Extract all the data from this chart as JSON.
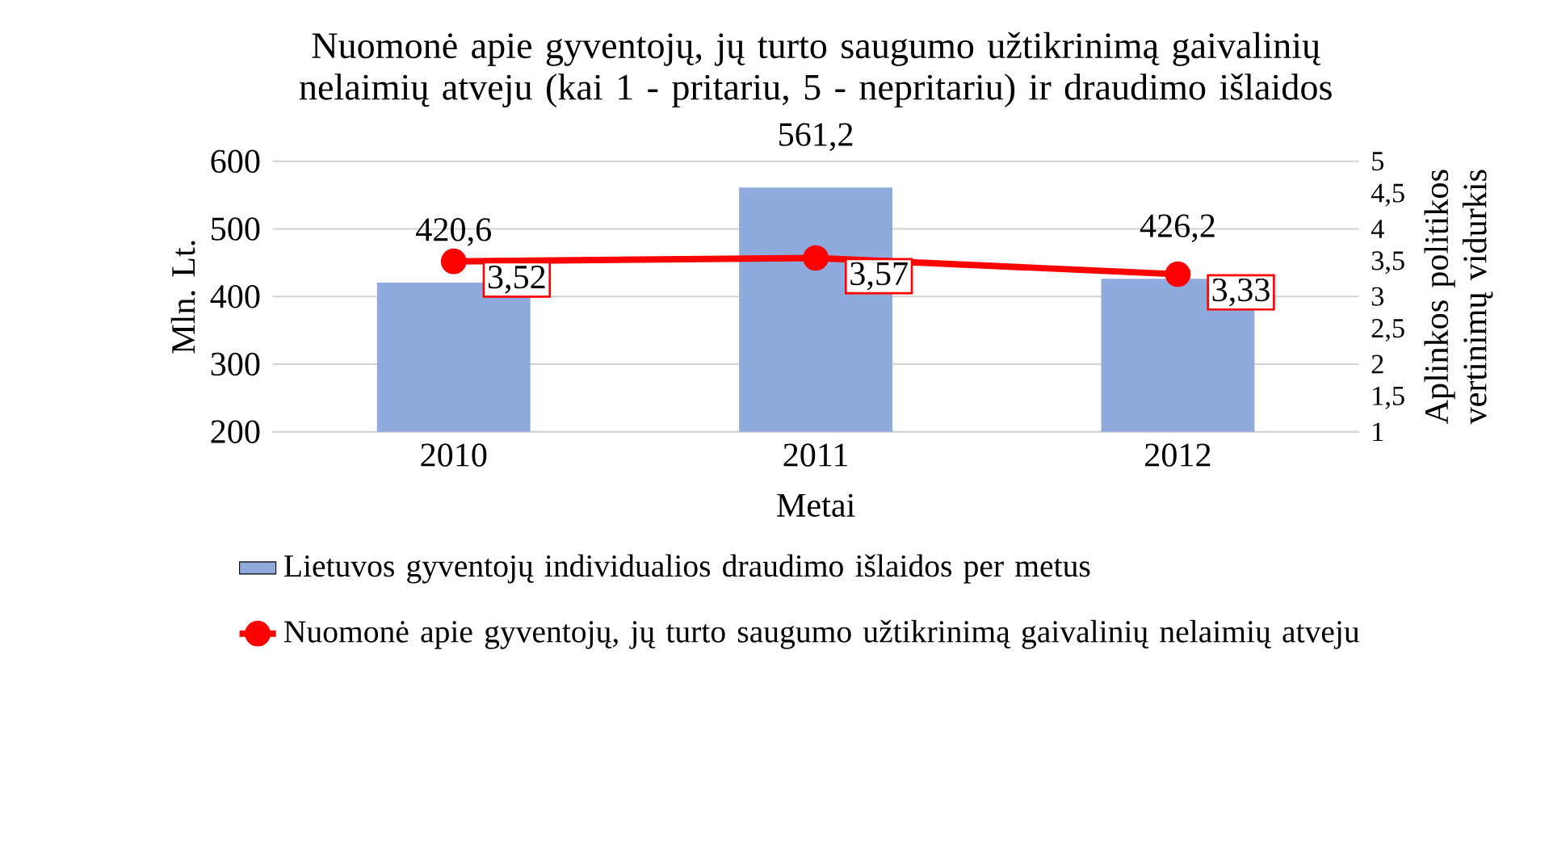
{
  "chart_data": {
    "type": "bar",
    "title": "Nuomonė apie gyventojų, jų turto saugumo užtikrinimą gaivalinių nelaimių atveju (kai 1 - pritariu, 5 - nepritariu) ir draudimo išlaidos",
    "xlabel": "Metai",
    "ylabel": "Mln. Lt.",
    "y2label": "Aplinkos politikos vertinimų vidurkis",
    "categories": [
      "2010",
      "2011",
      "2012"
    ],
    "series": [
      {
        "name": "Lietuvos gyventojų individualios draudimo išlaidos per metus",
        "color": "#8faadc",
        "values": [
          420.6,
          561.2,
          426.2
        ],
        "value_labels": [
          "420,6",
          "561,2",
          "426,2"
        ]
      },
      {
        "name": "Nuomonė apie gyventojų, jų turto saugumo užtikrinimą gaivalinių nelaimių atveju",
        "type": "line",
        "axis": "y2",
        "color": "#ff0000",
        "marker": "circle",
        "values": [
          3.52,
          3.57,
          3.33
        ],
        "value_labels": [
          "3,52",
          "3,57",
          "3,33"
        ]
      }
    ],
    "ylim": [
      200,
      600
    ],
    "yticks": [
      200,
      300,
      400,
      500,
      600
    ],
    "y2lim": [
      1,
      5
    ],
    "y2ticks": [
      1,
      {
        "value": 1.5,
        "label": "1,5"
      },
      2,
      {
        "value": 2.5,
        "label": "2,5"
      },
      3,
      {
        "value": 3.5,
        "label": "3,5"
      },
      4,
      {
        "value": 4.5,
        "label": "4,5"
      },
      5
    ],
    "grid": "y",
    "legend": "bottom"
  }
}
